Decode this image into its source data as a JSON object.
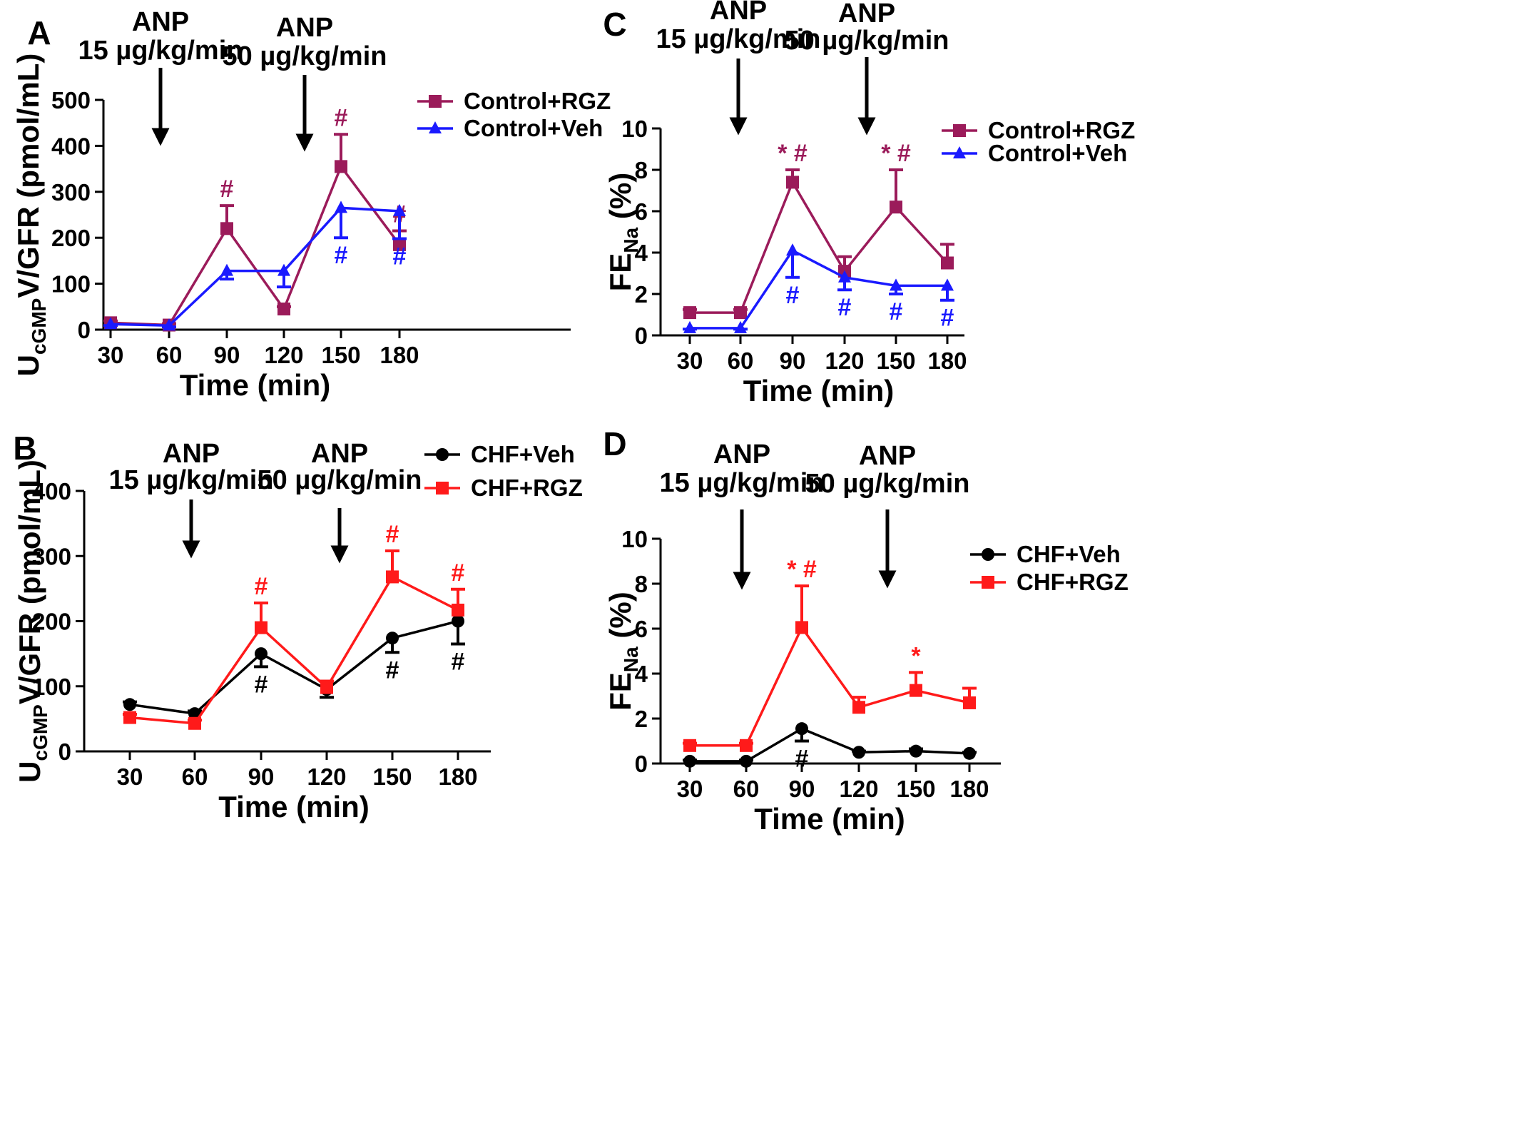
{
  "chart_data": [
    {
      "panel": "A",
      "type": "line",
      "x": [
        30,
        60,
        90,
        120,
        150,
        180
      ],
      "xlabel": "Time (min)",
      "ylabel_main": "U",
      "ylabel_sub": "cGMP",
      "ylabel_rest": "V/GFR (pmol/mL)",
      "ylim": [
        0,
        500
      ],
      "yticks": [
        0,
        100,
        200,
        300,
        400,
        500
      ],
      "legend_position": "top-right",
      "annotations": [
        {
          "line1": "ANP",
          "line2": "15 µg/kg/min",
          "at_x": 60
        },
        {
          "line1": "ANP",
          "line2": "50 µg/kg/min",
          "at_x": 120
        }
      ],
      "series": [
        {
          "name": "Control+RGZ",
          "color": "#9b1b5a",
          "marker": "square",
          "values": [
            15,
            10,
            220,
            45,
            355,
            185
          ],
          "err": [
            4,
            3,
            50,
            5,
            70,
            30
          ],
          "sig": [
            "",
            "",
            "#",
            "",
            "#",
            "#"
          ]
        },
        {
          "name": "Control+Veh",
          "color": "#1a1aff",
          "marker": "triangle",
          "values": [
            12,
            9,
            128,
            128,
            265,
            258
          ],
          "err": [
            3,
            3,
            18,
            35,
            65,
            60
          ],
          "sig": [
            "",
            "",
            "",
            "",
            "#",
            "#"
          ]
        }
      ]
    },
    {
      "panel": "B",
      "type": "line",
      "x": [
        30,
        60,
        90,
        120,
        150,
        180
      ],
      "xlabel": "Time (min)",
      "ylabel_main": "U",
      "ylabel_sub": "cGMP",
      "ylabel_rest": "V/GFR (pmol/mL)",
      "ylim": [
        0,
        400
      ],
      "yticks": [
        0,
        100,
        200,
        300,
        400
      ],
      "legend_position": "top-right",
      "annotations": [
        {
          "line1": "ANP",
          "line2": "15 µg/kg/min",
          "at_x": 60
        },
        {
          "line1": "ANP",
          "line2": "50 µg/kg/min",
          "at_x": 120
        }
      ],
      "series": [
        {
          "name": "CHF+Veh",
          "color": "#000000",
          "marker": "circle",
          "values": [
            72,
            58,
            150,
            95,
            174,
            200
          ],
          "err": [
            4,
            4,
            20,
            12,
            22,
            35
          ],
          "sig": [
            "",
            "",
            "#",
            "",
            "#",
            "#"
          ]
        },
        {
          "name": "CHF+RGZ",
          "color": "#ff1a1a",
          "marker": "square",
          "values": [
            52,
            43,
            190,
            98,
            268,
            217
          ],
          "err": [
            5,
            5,
            38,
            10,
            40,
            32
          ],
          "sig": [
            "",
            "",
            "#",
            "",
            "#",
            "#"
          ]
        }
      ]
    },
    {
      "panel": "C",
      "type": "line",
      "x": [
        30,
        60,
        90,
        120,
        150,
        180
      ],
      "xlabel": "Time (min)",
      "ylabel_main": "FE",
      "ylabel_sub": "Na",
      "ylabel_rest": " (%)",
      "ylim": [
        0,
        10
      ],
      "yticks": [
        0,
        2,
        4,
        6,
        8,
        10
      ],
      "legend_position": "top-right",
      "annotations": [
        {
          "line1": "ANP",
          "line2": "15 µg/kg/min",
          "at_x": 60
        },
        {
          "line1": "ANP",
          "line2": "50 µg/kg/min",
          "at_x": 120
        }
      ],
      "series": [
        {
          "name": "Control+RGZ",
          "color": "#9b1b5a",
          "marker": "square",
          "values": [
            1.1,
            1.1,
            7.4,
            3.1,
            6.2,
            3.5
          ],
          "err": [
            0.15,
            0.15,
            0.6,
            0.7,
            1.8,
            0.9
          ],
          "sig": [
            "",
            "",
            "* #",
            "",
            "* #",
            ""
          ]
        },
        {
          "name": "Control+Veh",
          "color": "#1a1aff",
          "marker": "triangle",
          "values": [
            0.35,
            0.35,
            4.1,
            2.8,
            2.4,
            2.4
          ],
          "err": [
            0.05,
            0.05,
            1.3,
            0.6,
            0.4,
            0.7
          ],
          "sig": [
            "",
            "",
            "#",
            "#",
            "#",
            "#"
          ]
        }
      ]
    },
    {
      "panel": "D",
      "type": "line",
      "x": [
        30,
        60,
        90,
        120,
        150,
        180
      ],
      "xlabel": "Time (min)",
      "ylabel_main": "FE",
      "ylabel_sub": "Na",
      "ylabel_rest": " (%)",
      "ylim": [
        0,
        10
      ],
      "yticks": [
        0,
        2,
        4,
        6,
        8,
        10
      ],
      "legend_position": "right",
      "annotations": [
        {
          "line1": "ANP",
          "line2": "15 µg/kg/min",
          "at_x": 60
        },
        {
          "line1": "ANP",
          "line2": "50 µg/kg/min",
          "at_x": 120
        }
      ],
      "series": [
        {
          "name": "CHF+Veh",
          "color": "#000000",
          "marker": "circle",
          "values": [
            0.1,
            0.1,
            1.55,
            0.5,
            0.55,
            0.45
          ],
          "err": [
            0.05,
            0.05,
            0.55,
            0.05,
            0.1,
            0.05
          ],
          "sig": [
            "",
            "",
            "#",
            "",
            "",
            ""
          ]
        },
        {
          "name": "CHF+RGZ",
          "color": "#ff1a1a",
          "marker": "square",
          "values": [
            0.8,
            0.8,
            6.05,
            2.5,
            3.25,
            2.7
          ],
          "err": [
            0.1,
            0.1,
            1.85,
            0.45,
            0.8,
            0.65
          ],
          "sig": [
            "",
            "",
            "* #",
            "",
            "*",
            ""
          ]
        }
      ]
    }
  ]
}
